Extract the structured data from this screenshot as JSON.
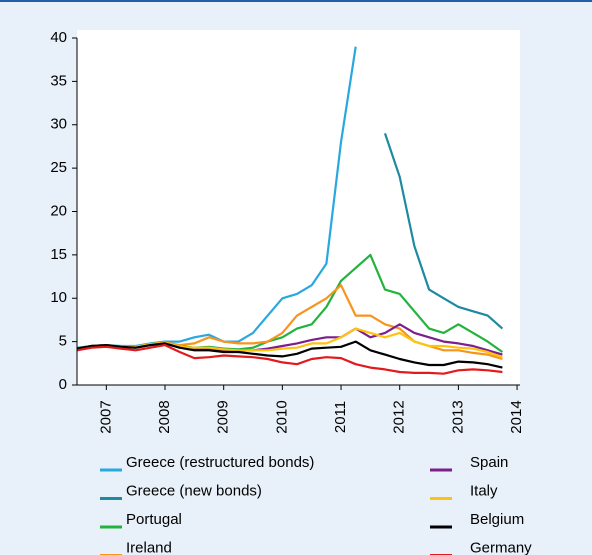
{
  "chart_data": {
    "type": "line",
    "x": [
      2007,
      2007.25,
      2007.5,
      2007.75,
      2008,
      2008.25,
      2008.5,
      2008.75,
      2009,
      2009.25,
      2009.5,
      2009.75,
      2010,
      2010.25,
      2010.5,
      2010.75,
      2011,
      2011.25,
      2011.5,
      2011.75,
      2012,
      2012.25,
      2012.5,
      2012.75,
      2013,
      2013.25,
      2013.5,
      2013.75,
      2014,
      2014.25
    ],
    "xlim": [
      2007,
      2014.55
    ],
    "xticks": [
      {
        "value": 2007.5,
        "label": "2007"
      },
      {
        "value": 2008.5,
        "label": "2008"
      },
      {
        "value": 2009.5,
        "label": "2009"
      },
      {
        "value": 2010.5,
        "label": "2010"
      },
      {
        "value": 2011.5,
        "label": "2011"
      },
      {
        "value": 2012.5,
        "label": "2012"
      },
      {
        "value": 2013.5,
        "label": "2013"
      },
      {
        "value": 2014.5,
        "label": "2014"
      }
    ],
    "ylim": [
      0,
      40
    ],
    "yticks": [
      0,
      5,
      10,
      15,
      20,
      25,
      30,
      35,
      40
    ],
    "series": [
      {
        "name": "Greece (restructured bonds)",
        "color": "#29a8e0",
        "values": [
          4.3,
          4.5,
          4.6,
          4.5,
          4.5,
          4.8,
          5.0,
          5.0,
          5.5,
          5.8,
          5.0,
          5.0,
          6.0,
          8.0,
          10,
          10.5,
          11.5,
          14,
          28,
          39,
          null,
          null,
          null,
          null,
          null,
          null,
          null,
          null,
          null,
          null
        ]
      },
      {
        "name": "Greece (new bonds)",
        "color": "#1e8aa0",
        "values": [
          null,
          null,
          null,
          null,
          null,
          null,
          null,
          null,
          null,
          null,
          null,
          null,
          null,
          null,
          null,
          null,
          null,
          null,
          null,
          null,
          null,
          29,
          24,
          16,
          11,
          10,
          9,
          8.5,
          8,
          6.5
        ]
      },
      {
        "name": "Portugal",
        "color": "#22b33c",
        "values": [
          4.2,
          4.5,
          4.6,
          4.4,
          4.3,
          4.6,
          4.9,
          4.5,
          4.3,
          4.4,
          4.2,
          4.1,
          4.3,
          5.0,
          5.5,
          6.5,
          7.0,
          9.0,
          12,
          13.5,
          15,
          11,
          10.5,
          8.5,
          6.5,
          6.0,
          7.0,
          6.0,
          5.0,
          3.8
        ]
      },
      {
        "name": "Ireland",
        "color": "#f7941d",
        "values": [
          4.2,
          4.5,
          4.6,
          4.4,
          4.4,
          4.7,
          4.9,
          4.6,
          4.8,
          5.5,
          5.0,
          4.8,
          4.8,
          5.0,
          6.0,
          8.0,
          9.0,
          10,
          11.5,
          8.0,
          8.0,
          7.0,
          6.5,
          5.0,
          4.5,
          4.0,
          4.0,
          3.7,
          3.5,
          3.0
        ]
      },
      {
        "name": "Spain",
        "color": "#7b1f8c",
        "values": [
          4.2,
          4.5,
          4.6,
          4.4,
          4.3,
          4.6,
          4.8,
          4.3,
          4.2,
          4.2,
          4.0,
          4.0,
          4.0,
          4.2,
          4.5,
          4.8,
          5.2,
          5.5,
          5.5,
          6.5,
          5.5,
          6.0,
          7.0,
          6.0,
          5.5,
          5.0,
          4.8,
          4.5,
          4.0,
          3.5
        ]
      },
      {
        "name": "Italy",
        "color": "#ffc20e",
        "values": [
          4.2,
          4.5,
          4.6,
          4.4,
          4.4,
          4.7,
          4.9,
          4.4,
          4.3,
          4.3,
          4.1,
          4.0,
          4.0,
          4.0,
          4.2,
          4.3,
          4.8,
          4.8,
          5.5,
          6.5,
          6.0,
          5.5,
          6.0,
          5.0,
          4.5,
          4.5,
          4.3,
          4.2,
          3.8,
          3.2
        ]
      },
      {
        "name": "Belgium",
        "color": "#000000",
        "values": [
          4.2,
          4.5,
          4.6,
          4.4,
          4.3,
          4.6,
          4.8,
          4.3,
          4.0,
          4.0,
          3.8,
          3.8,
          3.6,
          3.4,
          3.3,
          3.6,
          4.2,
          4.3,
          4.4,
          5.0,
          4.0,
          3.5,
          3.0,
          2.6,
          2.3,
          2.3,
          2.7,
          2.6,
          2.4,
          2.0
        ]
      },
      {
        "name": "Germany",
        "color": "#e31a1c",
        "values": [
          4.0,
          4.3,
          4.4,
          4.2,
          4.0,
          4.3,
          4.6,
          3.8,
          3.1,
          3.2,
          3.4,
          3.3,
          3.2,
          3.0,
          2.6,
          2.4,
          3.0,
          3.2,
          3.1,
          2.4,
          2.0,
          1.8,
          1.5,
          1.4,
          1.4,
          1.3,
          1.7,
          1.8,
          1.7,
          1.5
        ]
      }
    ]
  }
}
